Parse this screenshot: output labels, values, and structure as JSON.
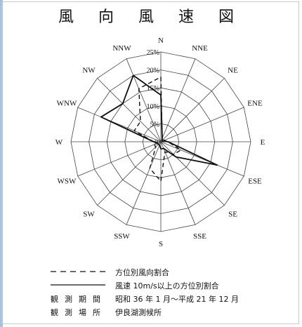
{
  "title": "風 向 風 速 図",
  "chart_data": {
    "type": "radar",
    "title": "風 向 風 速 図",
    "directions": [
      "N",
      "NNE",
      "NE",
      "ENE",
      "E",
      "ESE",
      "SE",
      "SSE",
      "S",
      "SSW",
      "SW",
      "WSW",
      "W",
      "WNW",
      "NW",
      "NNW"
    ],
    "rlim": [
      0,
      25
    ],
    "ring_ticks": [
      5,
      10,
      15,
      20,
      25
    ],
    "ring_tick_labels": [
      "5%",
      "10%",
      "15%",
      "20%",
      "25%"
    ],
    "center_label": "0",
    "grid": true,
    "series": [
      {
        "name": "方位別風向割合",
        "style": "dashed",
        "values": [
          18,
          1,
          1,
          1,
          2,
          6,
          5,
          3,
          11,
          8,
          2,
          2,
          2,
          8,
          8,
          16
        ]
      },
      {
        "name": "風速 10m/s以上の方位別割合",
        "style": "solid",
        "values": [
          13,
          1,
          0.5,
          0.5,
          2,
          17,
          6,
          2,
          2,
          1,
          1,
          1,
          2,
          18,
          15,
          20
        ]
      }
    ]
  },
  "legend": {
    "items": [
      {
        "style": "dashed",
        "label": "方位別風向割合"
      },
      {
        "style": "solid",
        "label": "風速 10m/s以上の方位別割合"
      }
    ],
    "period_term": "観測期間",
    "period_value": "昭和 36 年 1 月～平成 21 年 12 月",
    "place_term": "観測場所",
    "place_value": "伊良湖測候所"
  },
  "colors": {
    "line": "#111111",
    "grid": "#444444",
    "accent_strip": "#9fc3e6"
  }
}
